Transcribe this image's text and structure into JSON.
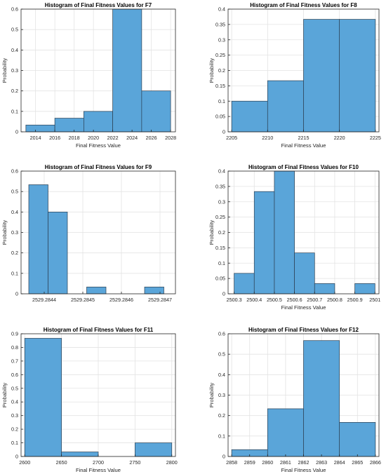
{
  "colors": {
    "bar_fill": "#5aa5d9",
    "bar_edge": "#2b3f52",
    "grid": "#e3e3e3",
    "axis": "#262626",
    "text": "#262626"
  },
  "chart_data": [
    {
      "type": "bar",
      "title": "Histogram of Final Fitness Values for F7",
      "xlabel": "Final Fitness Value",
      "ylabel": "Probability",
      "xlim": [
        2012.5,
        2028.5
      ],
      "ylim": [
        0,
        0.6
      ],
      "grid": true,
      "x_ticks": [
        2014,
        2016,
        2018,
        2020,
        2022,
        2024,
        2026,
        2028
      ],
      "x_tick_labels": [
        "2014",
        "2016",
        "2018",
        "2020",
        "2022",
        "2024",
        "2026",
        "2028"
      ],
      "y_ticks": [
        0,
        0.1,
        0.2,
        0.3,
        0.4,
        0.5,
        0.6
      ],
      "y_tick_labels": [
        "0",
        "0.1",
        "0.2",
        "0.3",
        "0.4",
        "0.5",
        "0.6"
      ],
      "bin_edges": [
        2013,
        2016,
        2019,
        2022,
        2025,
        2028
      ],
      "values": [
        0.0333,
        0.0667,
        0.1,
        0.6,
        0.2
      ]
    },
    {
      "type": "bar",
      "title": "Histogram of Final Fitness Values for F8",
      "xlabel": "Final Fitness Value",
      "ylabel": "Probability",
      "xlim": [
        2204.5,
        2225.5
      ],
      "ylim": [
        0,
        0.4
      ],
      "grid": true,
      "x_ticks": [
        2205,
        2210,
        2215,
        2220,
        2225
      ],
      "x_tick_labels": [
        "2205",
        "2210",
        "2215",
        "2220",
        "2225"
      ],
      "y_ticks": [
        0,
        0.05,
        0.1,
        0.15,
        0.2,
        0.25,
        0.3,
        0.35,
        0.4
      ],
      "y_tick_labels": [
        "0",
        "0.05",
        "0.1",
        "0.15",
        "0.2",
        "0.25",
        "0.3",
        "0.35",
        "0.4"
      ],
      "bin_edges": [
        2205,
        2210,
        2215,
        2220,
        2225
      ],
      "values": [
        0.1,
        0.1667,
        0.3667,
        0.3667
      ]
    },
    {
      "type": "bar",
      "title": "Histogram of Final Fitness Values for F9",
      "xlabel": "",
      "ylabel": "Probability",
      "xlim": [
        2529.28434,
        2529.28474
      ],
      "ylim": [
        0,
        0.6
      ],
      "grid": true,
      "x_ticks": [
        2529.2844,
        2529.2845,
        2529.2846,
        2529.2847
      ],
      "x_tick_labels": [
        "2529.2844",
        "2529.2845",
        "2529.2846",
        "2529.2847"
      ],
      "y_ticks": [
        0,
        0.1,
        0.2,
        0.3,
        0.4,
        0.5,
        0.6
      ],
      "y_tick_labels": [
        "0",
        "0.1",
        "0.2",
        "0.3",
        "0.4",
        "0.5",
        "0.6"
      ],
      "bin_edges": [
        2529.28436,
        2529.28441,
        2529.28446,
        2529.28451,
        2529.28456,
        2529.28461,
        2529.28466,
        2529.28471
      ],
      "values": [
        0.5333,
        0.4,
        0,
        0.0333,
        0,
        0,
        0.0333
      ]
    },
    {
      "type": "bar",
      "title": "Histogram of Final Fitness Values for F10",
      "xlabel": "Final Fitness Value",
      "ylabel": "Probability",
      "xlim": [
        2500.27,
        2501.02
      ],
      "ylim": [
        0,
        0.4
      ],
      "grid": true,
      "x_ticks": [
        2500.3,
        2500.4,
        2500.5,
        2500.6,
        2500.7,
        2500.8,
        2500.9,
        2501
      ],
      "x_tick_labels": [
        "2500.3",
        "2500.4",
        "2500.5",
        "2500.6",
        "2500.7",
        "2500.8",
        "2500.9",
        "2501"
      ],
      "y_ticks": [
        0,
        0.05,
        0.1,
        0.15,
        0.2,
        0.25,
        0.3,
        0.35,
        0.4
      ],
      "y_tick_labels": [
        "0",
        "0.05",
        "0.1",
        "0.15",
        "0.2",
        "0.25",
        "0.3",
        "0.35",
        "0.4"
      ],
      "bin_edges": [
        2500.3,
        2500.4,
        2500.5,
        2500.6,
        2500.7,
        2500.8,
        2500.9,
        2501.0
      ],
      "values": [
        0.0667,
        0.3333,
        0.4,
        0.1333,
        0.0333,
        0,
        0.0333
      ]
    },
    {
      "type": "bar",
      "title": "Histogram of Final Fitness Values for F11",
      "xlabel": "Final Fitness Value",
      "ylabel": "Probability",
      "xlim": [
        2595,
        2805
      ],
      "ylim": [
        0,
        0.9
      ],
      "grid": true,
      "x_ticks": [
        2600,
        2650,
        2700,
        2750,
        2800
      ],
      "x_tick_labels": [
        "2600",
        "2650",
        "2700",
        "2750",
        "2800"
      ],
      "y_ticks": [
        0,
        0.1,
        0.2,
        0.3,
        0.4,
        0.5,
        0.6,
        0.7,
        0.8,
        0.9
      ],
      "y_tick_labels": [
        "0",
        "0.1",
        "0.2",
        "0.3",
        "0.4",
        "0.5",
        "0.6",
        "0.7",
        "0.8",
        "0.9"
      ],
      "bin_edges": [
        2600,
        2650,
        2700,
        2750,
        2800
      ],
      "values": [
        0.8667,
        0.0333,
        0,
        0.1
      ]
    },
    {
      "type": "bar",
      "title": "Histogram of Final Fitness Values for F12",
      "xlabel": "Final Fitness Value",
      "ylabel": "Probability",
      "xlim": [
        2857.8,
        2866.2
      ],
      "ylim": [
        0,
        0.6
      ],
      "grid": true,
      "x_ticks": [
        2858,
        2859,
        2860,
        2861,
        2862,
        2863,
        2864,
        2865,
        2866
      ],
      "x_tick_labels": [
        "2858",
        "2859",
        "2860",
        "2861",
        "2862",
        "2863",
        "2864",
        "2865",
        "2866"
      ],
      "y_ticks": [
        0,
        0.1,
        0.2,
        0.3,
        0.4,
        0.5,
        0.6
      ],
      "y_tick_labels": [
        "0",
        "0.1",
        "0.2",
        "0.3",
        "0.4",
        "0.5",
        "0.6"
      ],
      "bin_edges": [
        2858,
        2860,
        2862,
        2864,
        2866
      ],
      "values": [
        0.0333,
        0.2333,
        0.5667,
        0.1667
      ]
    }
  ]
}
